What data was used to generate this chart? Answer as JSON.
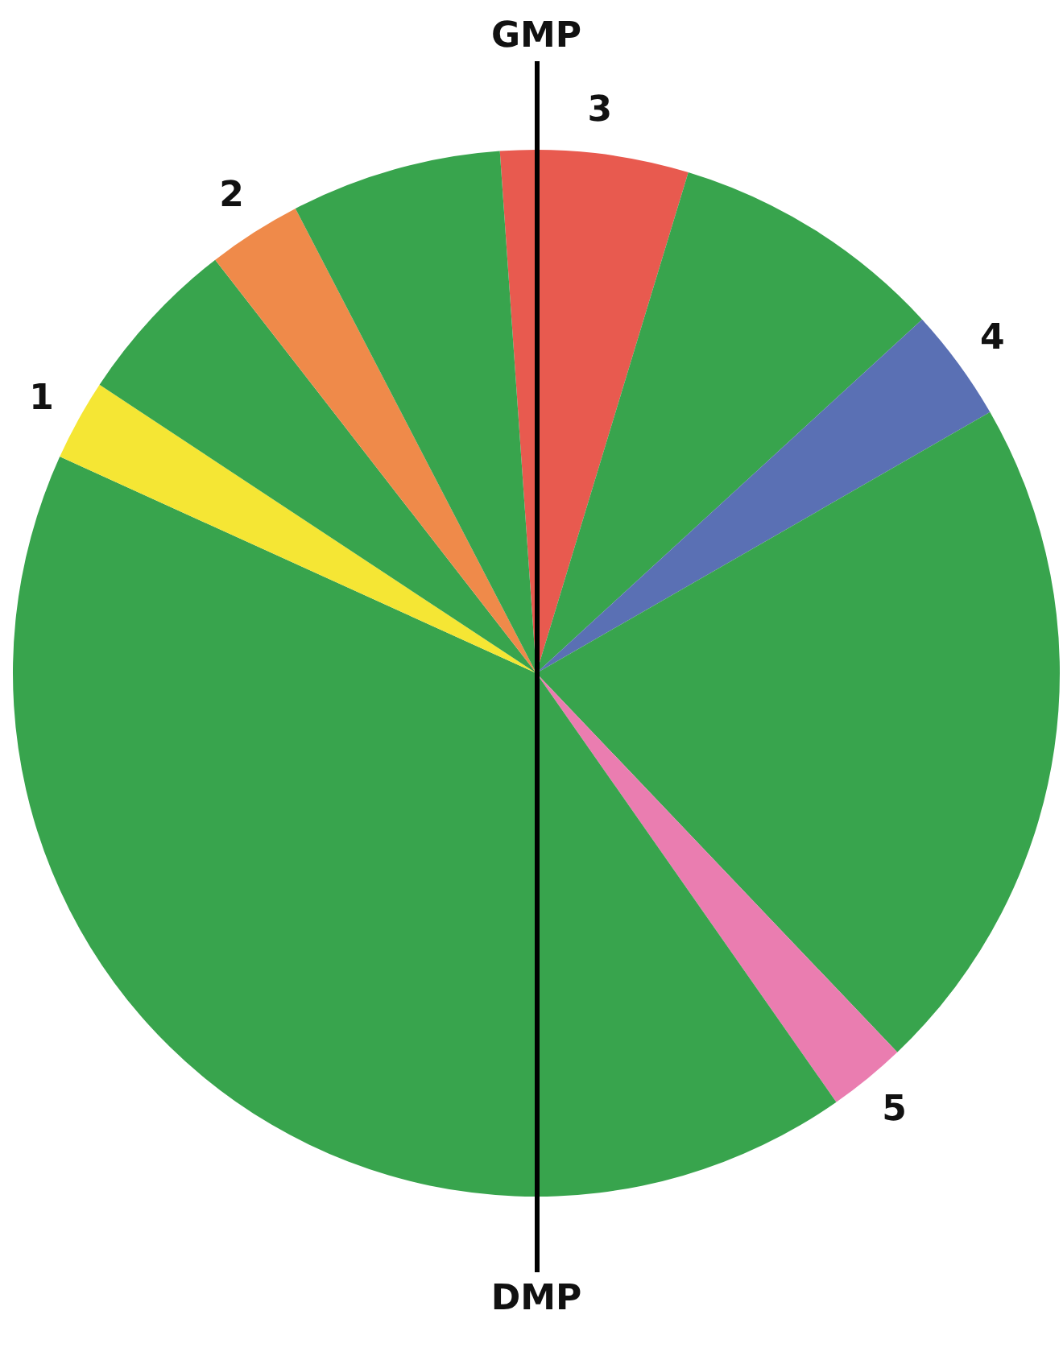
{
  "chart_data": {
    "type": "pie",
    "categories": [
      "3",
      null,
      "4",
      null,
      "5",
      null,
      "1",
      null,
      "2",
      null
    ],
    "values": [
      5.8,
      8.5,
      3.5,
      21.2,
      2.4,
      41.5,
      2.5,
      5.2,
      2.9,
      6.5
    ],
    "colors": [
      "#e85a4f",
      "#38a44d",
      "#5a70b4",
      "#38a44d",
      "#ea7db0",
      "#38a44d",
      "#f5e634",
      "#38a44d",
      "#ef8a4a",
      "#38a44d"
    ],
    "annotations": [
      "GMP",
      "DMP"
    ],
    "legend": false
  }
}
